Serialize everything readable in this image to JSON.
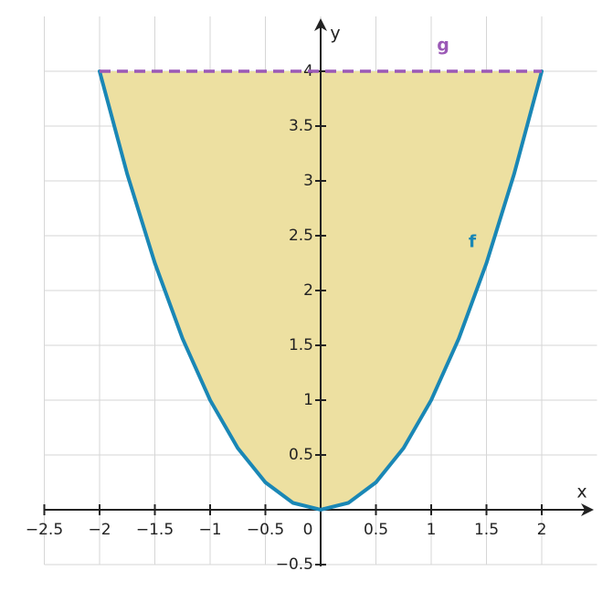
{
  "chart_data": {
    "type": "line",
    "xlabel": "x",
    "ylabel": "y",
    "x": [
      -2,
      -1.75,
      -1.5,
      -1.25,
      -1,
      -0.75,
      -0.5,
      -0.25,
      0,
      0.25,
      0.5,
      0.75,
      1,
      1.25,
      1.5,
      1.75,
      2
    ],
    "series": [
      {
        "name": "f",
        "color": "#1a87b5",
        "values": [
          4,
          3.0625,
          2.25,
          1.5625,
          1,
          0.5625,
          0.25,
          0.0625,
          0,
          0.0625,
          0.25,
          0.5625,
          1,
          1.5625,
          2.25,
          3.0625,
          4
        ]
      },
      {
        "name": "g",
        "color": "#9b59b6",
        "dashed": true,
        "values": [
          4,
          4,
          4,
          4,
          4,
          4,
          4,
          4,
          4,
          4,
          4,
          4,
          4,
          4,
          4,
          4,
          4
        ]
      }
    ],
    "fill_color": "#ede0a1",
    "xlim": [
      -2.5,
      2.5
    ],
    "ylim": [
      -0.5,
      4.5
    ],
    "xticks": [
      {
        "value": -2.5,
        "label": "−2.5"
      },
      {
        "value": -2,
        "label": "−2"
      },
      {
        "value": -1.5,
        "label": "−1.5"
      },
      {
        "value": -1,
        "label": "−1"
      },
      {
        "value": -0.5,
        "label": "−0.5"
      },
      0,
      0.5,
      1,
      1.5,
      2
    ],
    "yticks": [
      {
        "value": -0.5,
        "label": "−0.5"
      },
      0.5,
      1,
      1.5,
      2,
      2.5,
      3,
      3.5,
      4
    ],
    "grid": true
  }
}
